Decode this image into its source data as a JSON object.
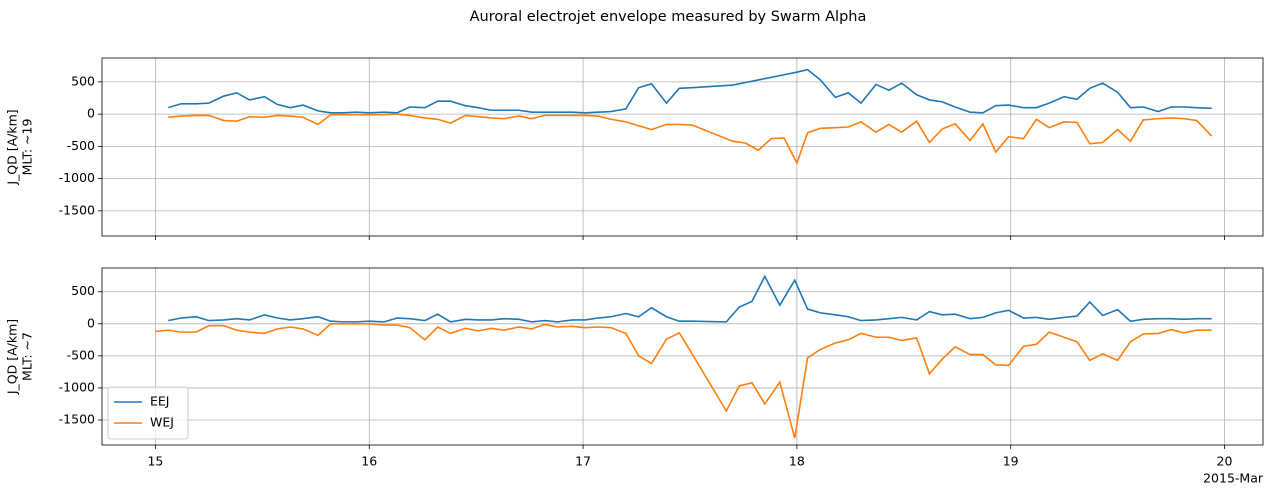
{
  "title": "Auroral electrojet envelope measured by Swarm Alpha",
  "chart_data": [
    {
      "type": "line",
      "ylabel": [
        "J_QD [A/km]",
        "MLT: ~19"
      ],
      "xlim": [
        14.75,
        20.18
      ],
      "xticks": [
        15,
        16,
        17,
        18,
        19,
        20
      ],
      "ylim": [
        -1890,
        870
      ],
      "yticks": [
        500,
        0,
        -500,
        -1000,
        -1500
      ],
      "grid": true,
      "x": [
        15.06,
        15.12,
        15.19,
        15.25,
        15.32,
        15.38,
        15.44,
        15.51,
        15.57,
        15.63,
        15.69,
        15.76,
        15.82,
        15.88,
        15.94,
        16.0,
        16.07,
        16.13,
        16.19,
        16.26,
        16.32,
        16.38,
        16.45,
        16.51,
        16.57,
        16.63,
        16.7,
        16.76,
        16.82,
        16.88,
        16.95,
        17.01,
        17.07,
        17.13,
        17.2,
        17.26,
        17.32,
        17.39,
        17.45,
        17.51,
        17.7,
        17.76,
        17.82,
        17.88,
        17.94,
        18.0,
        18.05,
        18.11,
        18.18,
        18.24,
        18.3,
        18.37,
        18.43,
        18.49,
        18.56,
        18.62,
        18.68,
        18.74,
        18.81,
        18.87,
        18.93,
        18.99,
        19.06,
        19.12,
        19.18,
        19.25,
        19.31,
        19.37,
        19.43,
        19.5,
        19.56,
        19.62,
        19.69,
        19.75,
        19.81,
        19.87,
        19.94
      ],
      "series": [
        {
          "color": "#1f77b4",
          "values": [
            100,
            160,
            160,
            170,
            280,
            330,
            220,
            270,
            150,
            100,
            140,
            50,
            20,
            20,
            30,
            20,
            30,
            20,
            110,
            100,
            200,
            200,
            130,
            100,
            60,
            60,
            60,
            30,
            30,
            30,
            30,
            20,
            30,
            40,
            80,
            410,
            470,
            170,
            400,
            410,
            450,
            490,
            530,
            570,
            610,
            650,
            690,
            530,
            260,
            330,
            170,
            460,
            370,
            480,
            300,
            220,
            190,
            110,
            30,
            20,
            130,
            140,
            100,
            100,
            170,
            270,
            230,
            400,
            480,
            340,
            100,
            110,
            40,
            110,
            110,
            100,
            90
          ]
        },
        {
          "color": "#ff7f0e",
          "values": [
            -50,
            -30,
            -20,
            -20,
            -100,
            -110,
            -40,
            -50,
            -20,
            -30,
            -50,
            -160,
            -10,
            -10,
            -10,
            -10,
            -10,
            0,
            -20,
            -60,
            -80,
            -140,
            -20,
            -40,
            -60,
            -70,
            -30,
            -70,
            -20,
            -20,
            -20,
            -20,
            -30,
            -80,
            -120,
            -180,
            -240,
            -160,
            -160,
            -170,
            -420,
            -450,
            -560,
            -380,
            -370,
            -760,
            -290,
            -220,
            -210,
            -200,
            -120,
            -280,
            -160,
            -280,
            -110,
            -440,
            -230,
            -150,
            -410,
            -150,
            -590,
            -350,
            -380,
            -80,
            -210,
            -120,
            -130,
            -460,
            -440,
            -240,
            -420,
            -90,
            -70,
            -60,
            -70,
            -100,
            -340
          ]
        }
      ]
    },
    {
      "type": "line",
      "ylabel": [
        "J_QD [A/km]",
        "MLT: ~7"
      ],
      "xlim": [
        14.75,
        20.18
      ],
      "xticks": [
        15,
        16,
        17,
        18,
        19,
        20
      ],
      "x_offset_label": "2015-Mar",
      "ylim": [
        -1890,
        870
      ],
      "yticks": [
        500,
        0,
        -500,
        -1000,
        -1500
      ],
      "grid": true,
      "legend": "lower left",
      "x": [
        15.0,
        15.06,
        15.12,
        15.19,
        15.25,
        15.32,
        15.38,
        15.44,
        15.51,
        15.57,
        15.63,
        15.69,
        15.76,
        15.82,
        15.88,
        15.94,
        16.0,
        16.07,
        16.13,
        16.19,
        16.26,
        16.32,
        16.38,
        16.45,
        16.51,
        16.57,
        16.63,
        16.7,
        16.76,
        16.82,
        16.88,
        16.95,
        17.01,
        17.07,
        17.13,
        17.2,
        17.26,
        17.32,
        17.39,
        17.45,
        17.51,
        17.67,
        17.73,
        17.79,
        17.85,
        17.92,
        17.99,
        18.05,
        18.11,
        18.18,
        18.24,
        18.3,
        18.37,
        18.43,
        18.49,
        18.56,
        18.62,
        18.68,
        18.74,
        18.81,
        18.87,
        18.93,
        18.99,
        19.06,
        19.12,
        19.18,
        19.25,
        19.31,
        19.37,
        19.43,
        19.5,
        19.56,
        19.62,
        19.69,
        19.75,
        19.81,
        19.87,
        19.94
      ],
      "series": [
        {
          "name": "EEJ",
          "color": "#1f77b4",
          "values": [
            null,
            50,
            90,
            110,
            50,
            60,
            80,
            60,
            140,
            90,
            60,
            80,
            110,
            40,
            30,
            30,
            40,
            30,
            90,
            80,
            50,
            150,
            30,
            70,
            60,
            60,
            80,
            70,
            30,
            50,
            30,
            60,
            60,
            90,
            110,
            160,
            110,
            250,
            110,
            40,
            40,
            30,
            260,
            350,
            740,
            290,
            680,
            230,
            170,
            140,
            110,
            50,
            60,
            80,
            100,
            60,
            190,
            140,
            150,
            80,
            100,
            170,
            210,
            90,
            100,
            70,
            100,
            120,
            340,
            130,
            220,
            40,
            70,
            80,
            80,
            70,
            80,
            80
          ]
        },
        {
          "name": "WEJ",
          "color": "#ff7f0e",
          "values": [
            -120,
            -100,
            -130,
            -130,
            -30,
            -30,
            -100,
            -130,
            -150,
            -80,
            -50,
            -80,
            -180,
            0,
            0,
            0,
            0,
            -20,
            -20,
            -60,
            -250,
            -50,
            -150,
            -70,
            -110,
            -70,
            -100,
            -50,
            -80,
            -10,
            -50,
            -40,
            -60,
            -50,
            -60,
            -150,
            -500,
            -620,
            -240,
            -140,
            -470,
            -1360,
            -970,
            -920,
            -1250,
            -910,
            -1780,
            -530,
            -400,
            -300,
            -250,
            -150,
            -210,
            -210,
            -260,
            -220,
            -780,
            -550,
            -360,
            -480,
            -480,
            -640,
            -650,
            -350,
            -320,
            -130,
            -210,
            -280,
            -570,
            -470,
            -570,
            -280,
            -160,
            -150,
            -90,
            -140,
            -100,
            -100
          ]
        }
      ]
    }
  ]
}
